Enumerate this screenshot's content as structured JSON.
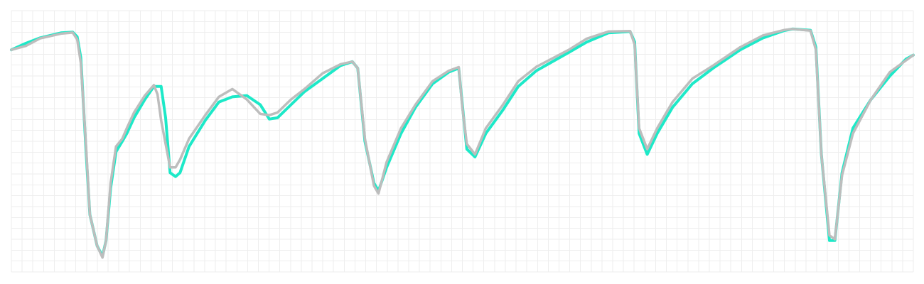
{
  "chart_data": {
    "type": "line",
    "title": "",
    "xlabel": "",
    "ylabel": "",
    "grid": true,
    "legend": "none",
    "xlim": [
      0,
      100
    ],
    "ylim": [
      0,
      100
    ],
    "x_grid_divisions": 84,
    "y_grid_divisions": 24,
    "series": [
      {
        "color": "#1de9c8",
        "points": [
          [
            0,
            85
          ],
          [
            1.6,
            87.5
          ],
          [
            3.2,
            89.6
          ],
          [
            5.5,
            91.5
          ],
          [
            6.8,
            91.8
          ],
          [
            7.3,
            90
          ],
          [
            7.7,
            82
          ],
          [
            8.3,
            45
          ],
          [
            8.7,
            22
          ],
          [
            9.5,
            10
          ],
          [
            10.1,
            6
          ],
          [
            10.5,
            12
          ],
          [
            11,
            32
          ],
          [
            11.6,
            46
          ],
          [
            12.3,
            50
          ],
          [
            12.8,
            53
          ],
          [
            13.6,
            59
          ],
          [
            14.8,
            66
          ],
          [
            15.8,
            71
          ],
          [
            16.6,
            71
          ],
          [
            17.1,
            59
          ],
          [
            17.6,
            38
          ],
          [
            18.2,
            36.5
          ],
          [
            18.7,
            38
          ],
          [
            19.7,
            48
          ],
          [
            21.5,
            58
          ],
          [
            23,
            65
          ],
          [
            24.5,
            67
          ],
          [
            26.1,
            67.5
          ],
          [
            27.6,
            64
          ],
          [
            28.6,
            58.5
          ],
          [
            29.5,
            59
          ],
          [
            31,
            64
          ],
          [
            32.5,
            69
          ],
          [
            34.5,
            74
          ],
          [
            36.5,
            79
          ],
          [
            37.8,
            80.5
          ],
          [
            38.4,
            78
          ],
          [
            39.2,
            50
          ],
          [
            40.2,
            34
          ],
          [
            40.7,
            31
          ],
          [
            41.6,
            40
          ],
          [
            43.2,
            53
          ],
          [
            44.8,
            63
          ],
          [
            46.7,
            72
          ],
          [
            48.5,
            76.5
          ],
          [
            49.6,
            78
          ],
          [
            50,
            64
          ],
          [
            50.5,
            47
          ],
          [
            51.4,
            44
          ],
          [
            52.6,
            53
          ],
          [
            54.5,
            62
          ],
          [
            56.2,
            71
          ],
          [
            58.2,
            77
          ],
          [
            61.8,
            84
          ],
          [
            63.8,
            88
          ],
          [
            66.2,
            91.5
          ],
          [
            68.6,
            92
          ],
          [
            69.1,
            88
          ],
          [
            69.6,
            53
          ],
          [
            70.5,
            45
          ],
          [
            71.6,
            53
          ],
          [
            73.3,
            63
          ],
          [
            75.5,
            72
          ],
          [
            77.8,
            78
          ],
          [
            80.8,
            85
          ],
          [
            83.3,
            89.5
          ],
          [
            85.7,
            92.4
          ],
          [
            86.6,
            93
          ],
          [
            88.6,
            92.5
          ],
          [
            89.2,
            86
          ],
          [
            89.8,
            45
          ],
          [
            90.7,
            12
          ],
          [
            91.3,
            12
          ],
          [
            92.1,
            38
          ],
          [
            93.3,
            55
          ],
          [
            95.3,
            66
          ],
          [
            97.4,
            75
          ],
          [
            99.2,
            81.5
          ],
          [
            100,
            83
          ]
        ]
      },
      {
        "color": "#bdbdbd",
        "points": [
          [
            0,
            85
          ],
          [
            1.6,
            86.5
          ],
          [
            3.2,
            89.4
          ],
          [
            5.5,
            91.2
          ],
          [
            6.8,
            91.6
          ],
          [
            7.3,
            89
          ],
          [
            7.7,
            80
          ],
          [
            8.3,
            47
          ],
          [
            8.7,
            22
          ],
          [
            9.5,
            10
          ],
          [
            10.1,
            5.5
          ],
          [
            10.5,
            12
          ],
          [
            11,
            34
          ],
          [
            11.6,
            48
          ],
          [
            12.3,
            51
          ],
          [
            12.8,
            55
          ],
          [
            13.6,
            61
          ],
          [
            14.8,
            67.5
          ],
          [
            15.8,
            71.5
          ],
          [
            16.2,
            68
          ],
          [
            16.6,
            58
          ],
          [
            17.6,
            40
          ],
          [
            18.2,
            40
          ],
          [
            18.7,
            43
          ],
          [
            19.7,
            51
          ],
          [
            21.5,
            60
          ],
          [
            23,
            67
          ],
          [
            24.5,
            70
          ],
          [
            26.1,
            66
          ],
          [
            27.6,
            60.5
          ],
          [
            28.6,
            60
          ],
          [
            29.5,
            61
          ],
          [
            31,
            66
          ],
          [
            32.5,
            70
          ],
          [
            34.5,
            76
          ],
          [
            36.5,
            79.5
          ],
          [
            37.8,
            80.5
          ],
          [
            38.4,
            78
          ],
          [
            39.2,
            51
          ],
          [
            40.2,
            33
          ],
          [
            40.7,
            30
          ],
          [
            41.6,
            42
          ],
          [
            43.2,
            55
          ],
          [
            44.8,
            64
          ],
          [
            46.7,
            73
          ],
          [
            48.5,
            77
          ],
          [
            49.6,
            78.4
          ],
          [
            50,
            63
          ],
          [
            50.5,
            49
          ],
          [
            51.4,
            45
          ],
          [
            52.6,
            55
          ],
          [
            54.5,
            64
          ],
          [
            56.2,
            73
          ],
          [
            58.2,
            78.5
          ],
          [
            61.8,
            85
          ],
          [
            63.8,
            89.3
          ],
          [
            66.2,
            92
          ],
          [
            68.6,
            92.2
          ],
          [
            69.1,
            87
          ],
          [
            69.6,
            55
          ],
          [
            70.5,
            47
          ],
          [
            71.6,
            55
          ],
          [
            73.3,
            65
          ],
          [
            75.5,
            74
          ],
          [
            77.8,
            79
          ],
          [
            80.8,
            86
          ],
          [
            83.3,
            90.5
          ],
          [
            85.7,
            92.6
          ],
          [
            86.6,
            93
          ],
          [
            88.6,
            92.3
          ],
          [
            89.2,
            85
          ],
          [
            89.8,
            45
          ],
          [
            90.7,
            14
          ],
          [
            91.3,
            12.5
          ],
          [
            92.1,
            37
          ],
          [
            93.3,
            53
          ],
          [
            95.3,
            66
          ],
          [
            97.4,
            76.5
          ],
          [
            99.2,
            81
          ],
          [
            100,
            83
          ]
        ]
      }
    ]
  }
}
